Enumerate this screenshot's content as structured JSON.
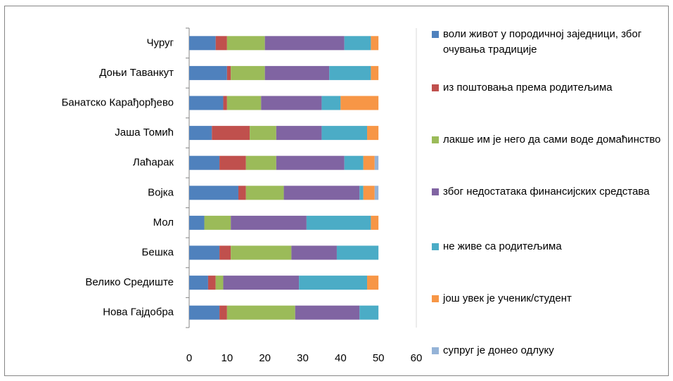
{
  "chart_data": {
    "type": "stacked-barh",
    "categories": [
      "Чуруг",
      "Доњи Таванкут",
      "Банатско Карађорђево",
      "Јаша Томић",
      "Лаћарак",
      "Војка",
      "Мол",
      "Бешка",
      "Велико Средиште",
      "Нова Гајдобра"
    ],
    "series": [
      {
        "name": "воли живот у породичној заједници, због очувања традиције",
        "color": "#4f81bd",
        "values": [
          7,
          10,
          9,
          6,
          8,
          13,
          4,
          8,
          5,
          8
        ]
      },
      {
        "name": "из поштовања према родитељима",
        "color": "#c0504d",
        "values": [
          3,
          1,
          1,
          10,
          7,
          2,
          0,
          3,
          2,
          2
        ]
      },
      {
        "name": "лакше им је него да сами воде домаћинство",
        "color": "#9bbb59",
        "values": [
          10,
          9,
          9,
          7,
          8,
          10,
          7,
          16,
          2,
          18
        ]
      },
      {
        "name": "због недостатака финансијских средстава",
        "color": "#8064a2",
        "values": [
          21,
          17,
          16,
          12,
          18,
          20,
          20,
          12,
          20,
          17
        ]
      },
      {
        "name": "не живе са родитељима",
        "color": "#4bacc6",
        "values": [
          7,
          11,
          5,
          12,
          5,
          1,
          17,
          11,
          18,
          5
        ]
      },
      {
        "name": "још увек је ученик/студент",
        "color": "#f79646",
        "values": [
          2,
          2,
          10,
          3,
          3,
          3,
          2,
          0,
          3,
          0
        ]
      },
      {
        "name": "супруг је донео одлуку",
        "color": "#95b3d7",
        "values": [
          0,
          0,
          0,
          0,
          1,
          1,
          0,
          0,
          0,
          0
        ]
      }
    ],
    "xlim": [
      0,
      60
    ],
    "xticks": [
      0,
      10,
      20,
      30,
      40,
      50,
      60
    ],
    "legend": "right"
  }
}
